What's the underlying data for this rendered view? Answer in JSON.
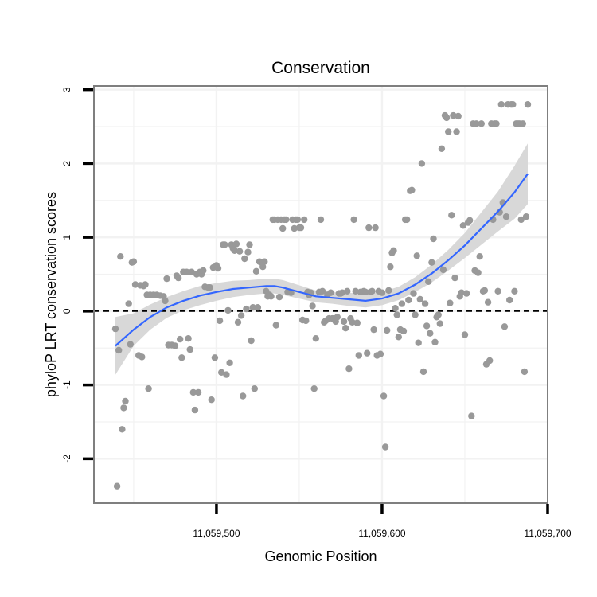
{
  "chart_data": {
    "type": "scatter",
    "title": "Conservation",
    "xlabel": "Genomic Position",
    "ylabel": "phyloP LRT conservation scores",
    "xlim": [
      11059426,
      11059700
    ],
    "ylim": [
      -2.6,
      3.05
    ],
    "x_ticks": [
      11059500,
      11059600,
      11059700
    ],
    "x_tick_labels": [
      "11,059,500",
      "11,059,600",
      "11,059,700"
    ],
    "y_ticks": [
      -2,
      -1,
      0,
      1,
      2,
      3
    ],
    "y_tick_labels": [
      "-2",
      "-1",
      "0",
      "1",
      "2",
      "3"
    ],
    "grid": true,
    "reference_line": {
      "y": 0,
      "style": "dashed"
    },
    "colors": {
      "points": "#999999",
      "smooth": "#3366ff",
      "ribbon": "#d6d6d6",
      "grid": "#f2f2f2",
      "panel_border": "#7f7f7f"
    },
    "points": [
      [
        11059439,
        -0.24
      ],
      [
        11059440,
        -2.37
      ],
      [
        11059441,
        -0.53
      ],
      [
        11059442,
        0.74
      ],
      [
        11059443,
        -1.6
      ],
      [
        11059444,
        -1.31
      ],
      [
        11059445,
        -1.22
      ],
      [
        11059447,
        0.1
      ],
      [
        11059448,
        -0.45
      ],
      [
        11059449,
        0.66
      ],
      [
        11059450,
        0.67
      ],
      [
        11059451,
        0.36
      ],
      [
        11059453,
        -0.6
      ],
      [
        11059454,
        0.35
      ],
      [
        11059455,
        -0.62
      ],
      [
        11059456,
        0.34
      ],
      [
        11059457,
        0.36
      ],
      [
        11059459,
        -1.05
      ],
      [
        11059458,
        0.22
      ],
      [
        11059460,
        0.22
      ],
      [
        11059462,
        0.22
      ],
      [
        11059464,
        0.22
      ],
      [
        11059466,
        0.21
      ],
      [
        11059468,
        0.2
      ],
      [
        11059469,
        0.14
      ],
      [
        11059470,
        0.44
      ],
      [
        11059471,
        -0.46
      ],
      [
        11059473,
        -0.46
      ],
      [
        11059475,
        -0.47
      ],
      [
        11059476,
        0.48
      ],
      [
        11059477,
        0.45
      ],
      [
        11059478,
        -0.38
      ],
      [
        11059479,
        -0.63
      ],
      [
        11059480,
        0.53
      ],
      [
        11059482,
        0.53
      ],
      [
        11059483,
        -0.37
      ],
      [
        11059484,
        -0.52
      ],
      [
        11059485,
        0.53
      ],
      [
        11059486,
        -1.1
      ],
      [
        11059487,
        -1.34
      ],
      [
        11059488,
        0.5
      ],
      [
        11059489,
        -1.1
      ],
      [
        11059490,
        0.53
      ],
      [
        11059491,
        0.5
      ],
      [
        11059492,
        0.55
      ],
      [
        11059493,
        0.33
      ],
      [
        11059495,
        0.32
      ],
      [
        11059496,
        0.32
      ],
      [
        11059497,
        -1.2
      ],
      [
        11059498,
        0.59
      ],
      [
        11059499,
        -0.63
      ],
      [
        11059500,
        0.62
      ],
      [
        11059501,
        0.58
      ],
      [
        11059502,
        -0.13
      ],
      [
        11059503,
        -0.83
      ],
      [
        11059504,
        0.9
      ],
      [
        11059505,
        0.9
      ],
      [
        11059506,
        -0.86
      ],
      [
        11059507,
        0.01
      ],
      [
        11059508,
        -0.7
      ],
      [
        11059509,
        0.9
      ],
      [
        11059510,
        0.85
      ],
      [
        11059511,
        0.82
      ],
      [
        11059512,
        0.91
      ],
      [
        11059513,
        -0.15
      ],
      [
        11059514,
        0.81
      ],
      [
        11059515,
        -0.06
      ],
      [
        11059516,
        -1.15
      ],
      [
        11059517,
        0.71
      ],
      [
        11059518,
        0.03
      ],
      [
        11059519,
        0.8
      ],
      [
        11059520,
        0.9
      ],
      [
        11059521,
        -0.4
      ],
      [
        11059522,
        0.05
      ],
      [
        11059523,
        -1.05
      ],
      [
        11059524,
        0.54
      ],
      [
        11059525,
        0.05
      ],
      [
        11059526,
        0.67
      ],
      [
        11059527,
        0.66
      ],
      [
        11059528,
        0.6
      ],
      [
        11059529,
        0.67
      ],
      [
        11059530,
        0.27
      ],
      [
        11059531,
        0.2
      ],
      [
        11059532,
        0.22
      ],
      [
        11059533,
        0.2
      ],
      [
        11059534,
        1.24
      ],
      [
        11059535,
        1.24
      ],
      [
        11059536,
        -0.19
      ],
      [
        11059537,
        1.24
      ],
      [
        11059538,
        0.19
      ],
      [
        11059539,
        1.24
      ],
      [
        11059540,
        1.12
      ],
      [
        11059541,
        1.24
      ],
      [
        11059542,
        1.24
      ],
      [
        11059543,
        0.26
      ],
      [
        11059545,
        0.25
      ],
      [
        11059546,
        1.24
      ],
      [
        11059547,
        1.12
      ],
      [
        11059548,
        1.24
      ],
      [
        11059549,
        1.24
      ],
      [
        11059550,
        1.13
      ],
      [
        11059551,
        1.13
      ],
      [
        11059552,
        -0.12
      ],
      [
        11059553,
        1.24
      ],
      [
        11059554,
        -0.13
      ],
      [
        11059555,
        0.26
      ],
      [
        11059556,
        0.22
      ],
      [
        11059557,
        0.25
      ],
      [
        11059558,
        0.07
      ],
      [
        11059559,
        -1.05
      ],
      [
        11059560,
        -0.37
      ],
      [
        11059562,
        0.26
      ],
      [
        11059563,
        1.24
      ],
      [
        11059564,
        0.27
      ],
      [
        11059565,
        -0.15
      ],
      [
        11059566,
        -0.13
      ],
      [
        11059567,
        0.22
      ],
      [
        11059568,
        -0.1
      ],
      [
        11059569,
        0.25
      ],
      [
        11059570,
        -0.1
      ],
      [
        11059571,
        -0.1
      ],
      [
        11059572,
        -0.14
      ],
      [
        11059573,
        -0.08
      ],
      [
        11059574,
        0.24
      ],
      [
        11059575,
        0.24
      ],
      [
        11059576,
        0.25
      ],
      [
        11059577,
        -0.14
      ],
      [
        11059578,
        -0.23
      ],
      [
        11059579,
        0.27
      ],
      [
        11059580,
        -0.78
      ],
      [
        11059581,
        -0.1
      ],
      [
        11059582,
        -0.15
      ],
      [
        11059583,
        1.24
      ],
      [
        11059584,
        0.27
      ],
      [
        11059585,
        -0.16
      ],
      [
        11059586,
        -0.6
      ],
      [
        11059587,
        0.26
      ],
      [
        11059588,
        0.26
      ],
      [
        11059589,
        0.27
      ],
      [
        11059590,
        0.26
      ],
      [
        11059591,
        -0.57
      ],
      [
        11059592,
        1.13
      ],
      [
        11059593,
        0.26
      ],
      [
        11059594,
        0.27
      ],
      [
        11059595,
        -0.25
      ],
      [
        11059596,
        1.13
      ],
      [
        11059597,
        -0.6
      ],
      [
        11059598,
        0.27
      ],
      [
        11059599,
        -0.58
      ],
      [
        11059600,
        0.25
      ],
      [
        11059601,
        -1.15
      ],
      [
        11059602,
        -1.84
      ],
      [
        11059603,
        -0.26
      ],
      [
        11059604,
        0.28
      ],
      [
        11059605,
        0.6
      ],
      [
        11059606,
        0.79
      ],
      [
        11059607,
        0.82
      ],
      [
        11059608,
        0.04
      ],
      [
        11059609,
        -0.05
      ],
      [
        11059610,
        -0.35
      ],
      [
        11059611,
        -0.25
      ],
      [
        11059612,
        0.1
      ],
      [
        11059613,
        -0.27
      ],
      [
        11059614,
        1.24
      ],
      [
        11059615,
        1.24
      ],
      [
        11059616,
        0.15
      ],
      [
        11059617,
        1.63
      ],
      [
        11059618,
        1.64
      ],
      [
        11059619,
        0.24
      ],
      [
        11059620,
        -0.05
      ],
      [
        11059621,
        0.75
      ],
      [
        11059622,
        -0.43
      ],
      [
        11059623,
        0.16
      ],
      [
        11059624,
        2.0
      ],
      [
        11059625,
        -0.82
      ],
      [
        11059626,
        0.1
      ],
      [
        11059627,
        -0.2
      ],
      [
        11059628,
        0.4
      ],
      [
        11059629,
        -0.3
      ],
      [
        11059630,
        0.66
      ],
      [
        11059631,
        0.98
      ],
      [
        11059632,
        -0.42
      ],
      [
        11059633,
        -0.08
      ],
      [
        11059634,
        -0.05
      ],
      [
        11059635,
        -0.17
      ],
      [
        11059636,
        2.2
      ],
      [
        11059637,
        0.56
      ],
      [
        11059638,
        2.65
      ],
      [
        11059639,
        2.62
      ],
      [
        11059640,
        2.43
      ],
      [
        11059641,
        0.11
      ],
      [
        11059642,
        1.3
      ],
      [
        11059643,
        2.65
      ],
      [
        11059644,
        0.45
      ],
      [
        11059645,
        2.43
      ],
      [
        11059646,
        2.64
      ],
      [
        11059647,
        0.2
      ],
      [
        11059648,
        0.25
      ],
      [
        11059649,
        1.16
      ],
      [
        11059650,
        -0.32
      ],
      [
        11059651,
        0.24
      ],
      [
        11059652,
        1.2
      ],
      [
        11059653,
        1.23
      ],
      [
        11059654,
        -1.42
      ],
      [
        11059655,
        2.54
      ],
      [
        11059656,
        0.55
      ],
      [
        11059657,
        2.54
      ],
      [
        11059658,
        0.52
      ],
      [
        11059659,
        0.74
      ],
      [
        11059660,
        2.54
      ],
      [
        11059661,
        0.27
      ],
      [
        11059662,
        0.28
      ],
      [
        11059663,
        -0.72
      ],
      [
        11059664,
        0.12
      ],
      [
        11059665,
        -0.67
      ],
      [
        11059666,
        2.54
      ],
      [
        11059667,
        1.24
      ],
      [
        11059668,
        2.54
      ],
      [
        11059669,
        2.54
      ],
      [
        11059670,
        0.27
      ],
      [
        11059671,
        1.34
      ],
      [
        11059672,
        2.8
      ],
      [
        11059673,
        1.47
      ],
      [
        11059674,
        -0.21
      ],
      [
        11059675,
        1.28
      ],
      [
        11059676,
        2.8
      ],
      [
        11059677,
        0.15
      ],
      [
        11059678,
        2.8
      ],
      [
        11059679,
        2.8
      ],
      [
        11059680,
        0.27
      ],
      [
        11059681,
        2.54
      ],
      [
        11059682,
        2.54
      ],
      [
        11059683,
        2.54
      ],
      [
        11059684,
        1.24
      ],
      [
        11059685,
        2.54
      ],
      [
        11059686,
        -0.82
      ],
      [
        11059687,
        1.28
      ],
      [
        11059688,
        2.8
      ]
    ],
    "smooth": {
      "x": [
        11059439,
        11059450,
        11059460,
        11059470,
        11059480,
        11059490,
        11059500,
        11059510,
        11059520,
        11059530,
        11059535,
        11059540,
        11059550,
        11059560,
        11059570,
        11059580,
        11059590,
        11059600,
        11059610,
        11059620,
        11059630,
        11059640,
        11059650,
        11059660,
        11059670,
        11059680,
        11059688
      ],
      "y": [
        -0.47,
        -0.25,
        -0.08,
        0.05,
        0.14,
        0.21,
        0.26,
        0.3,
        0.32,
        0.34,
        0.34,
        0.32,
        0.26,
        0.2,
        0.18,
        0.16,
        0.14,
        0.17,
        0.24,
        0.36,
        0.51,
        0.69,
        0.89,
        1.12,
        1.35,
        1.61,
        1.86
      ],
      "lo": [
        -0.86,
        -0.47,
        -0.25,
        -0.09,
        0.01,
        0.08,
        0.14,
        0.19,
        0.22,
        0.24,
        0.24,
        0.22,
        0.17,
        0.12,
        0.1,
        0.07,
        0.05,
        0.08,
        0.15,
        0.26,
        0.39,
        0.55,
        0.72,
        0.9,
        1.08,
        1.25,
        1.45
      ],
      "hi": [
        -0.08,
        -0.03,
        0.09,
        0.19,
        0.27,
        0.34,
        0.38,
        0.41,
        0.42,
        0.44,
        0.44,
        0.42,
        0.35,
        0.28,
        0.26,
        0.25,
        0.23,
        0.26,
        0.33,
        0.46,
        0.63,
        0.83,
        1.06,
        1.34,
        1.62,
        1.97,
        2.27
      ]
    }
  }
}
